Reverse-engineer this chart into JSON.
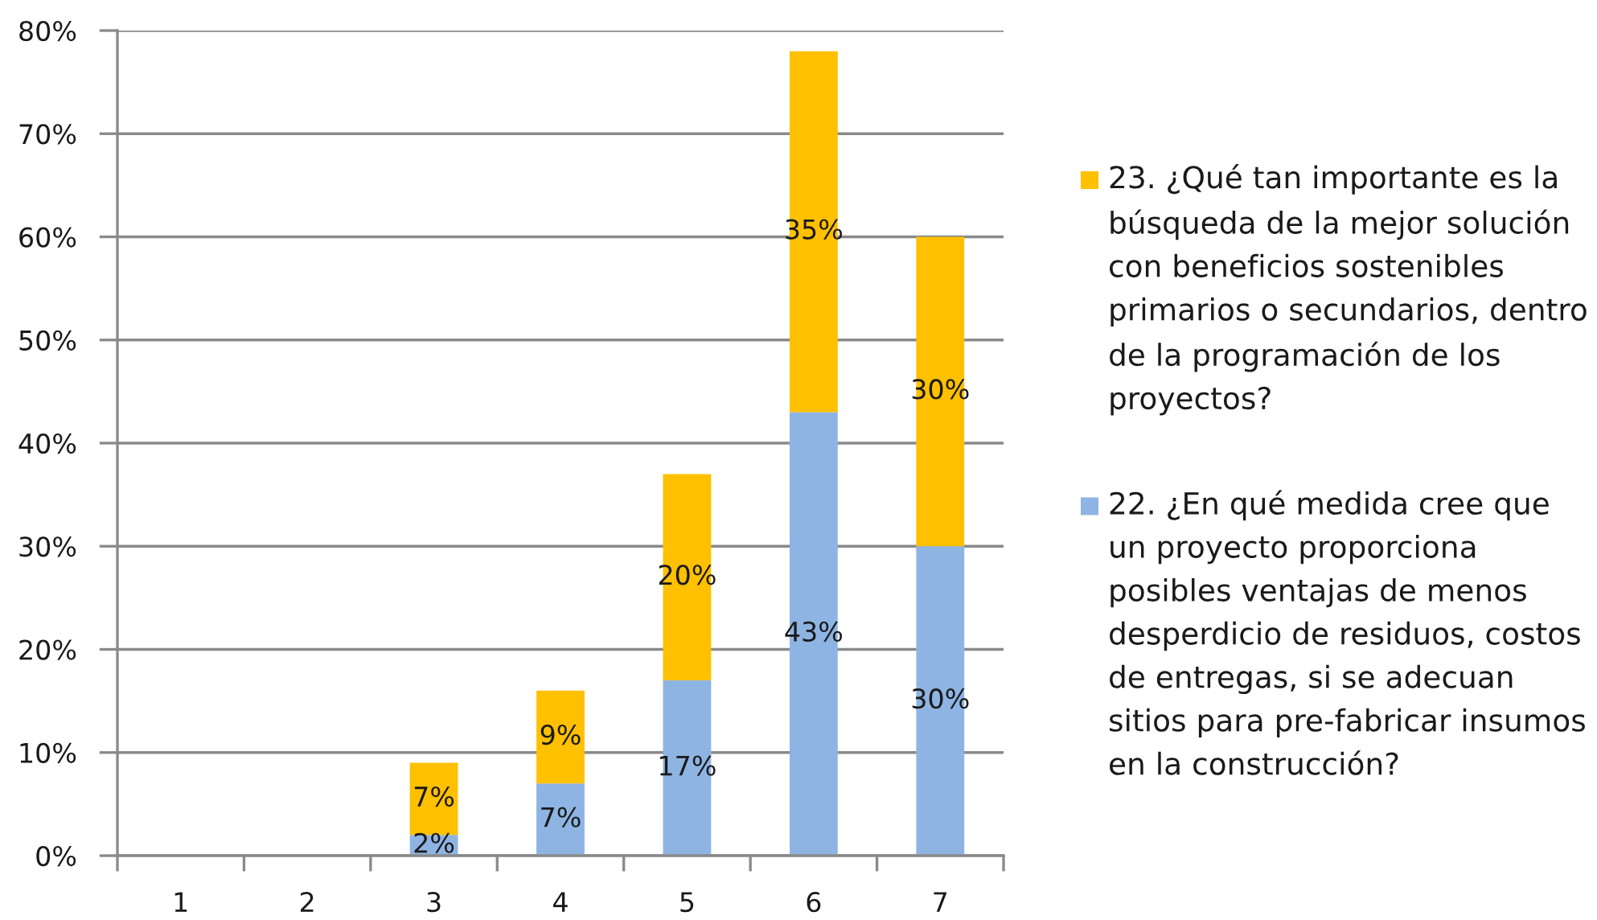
{
  "chart_data": {
    "type": "bar",
    "stacked": true,
    "categories": [
      "1",
      "2",
      "3",
      "4",
      "5",
      "6",
      "7"
    ],
    "series": [
      {
        "name": "22. ¿En qué medida cree que un proyecto proporciona posibles ventajas de menos desperdicio de residuos, costos de entregas, si se adecuan sitios para pre-fabricar insumos en la construcción?",
        "color": "#8eb4e3",
        "values": [
          null,
          null,
          2,
          7,
          17,
          43,
          30
        ],
        "value_labels": [
          null,
          null,
          "2%",
          "7%",
          "17%",
          "43%",
          "30%"
        ]
      },
      {
        "name": "23. ¿Qué tan importante es la búsqueda de la mejor solución con beneficios sostenibles primarios o secundarios, dentro de la programación de los proyectos?",
        "color": "#ffc000",
        "values": [
          null,
          null,
          7,
          9,
          20,
          35,
          30
        ],
        "value_labels": [
          null,
          null,
          "7%",
          "9%",
          "20%",
          "35%",
          "30%"
        ]
      }
    ],
    "ylim": [
      0,
      80
    ],
    "yticks": [
      {
        "value": 0,
        "label": "0%"
      },
      {
        "value": 10,
        "label": "10%"
      },
      {
        "value": 20,
        "label": "20%"
      },
      {
        "value": 30,
        "label": "30%"
      },
      {
        "value": 40,
        "label": "40%"
      },
      {
        "value": 50,
        "label": "50%"
      },
      {
        "value": 60,
        "label": "60%"
      },
      {
        "value": 70,
        "label": "70%"
      },
      {
        "value": 80,
        "label": "80%"
      }
    ],
    "grid": "y",
    "legend": "right"
  }
}
